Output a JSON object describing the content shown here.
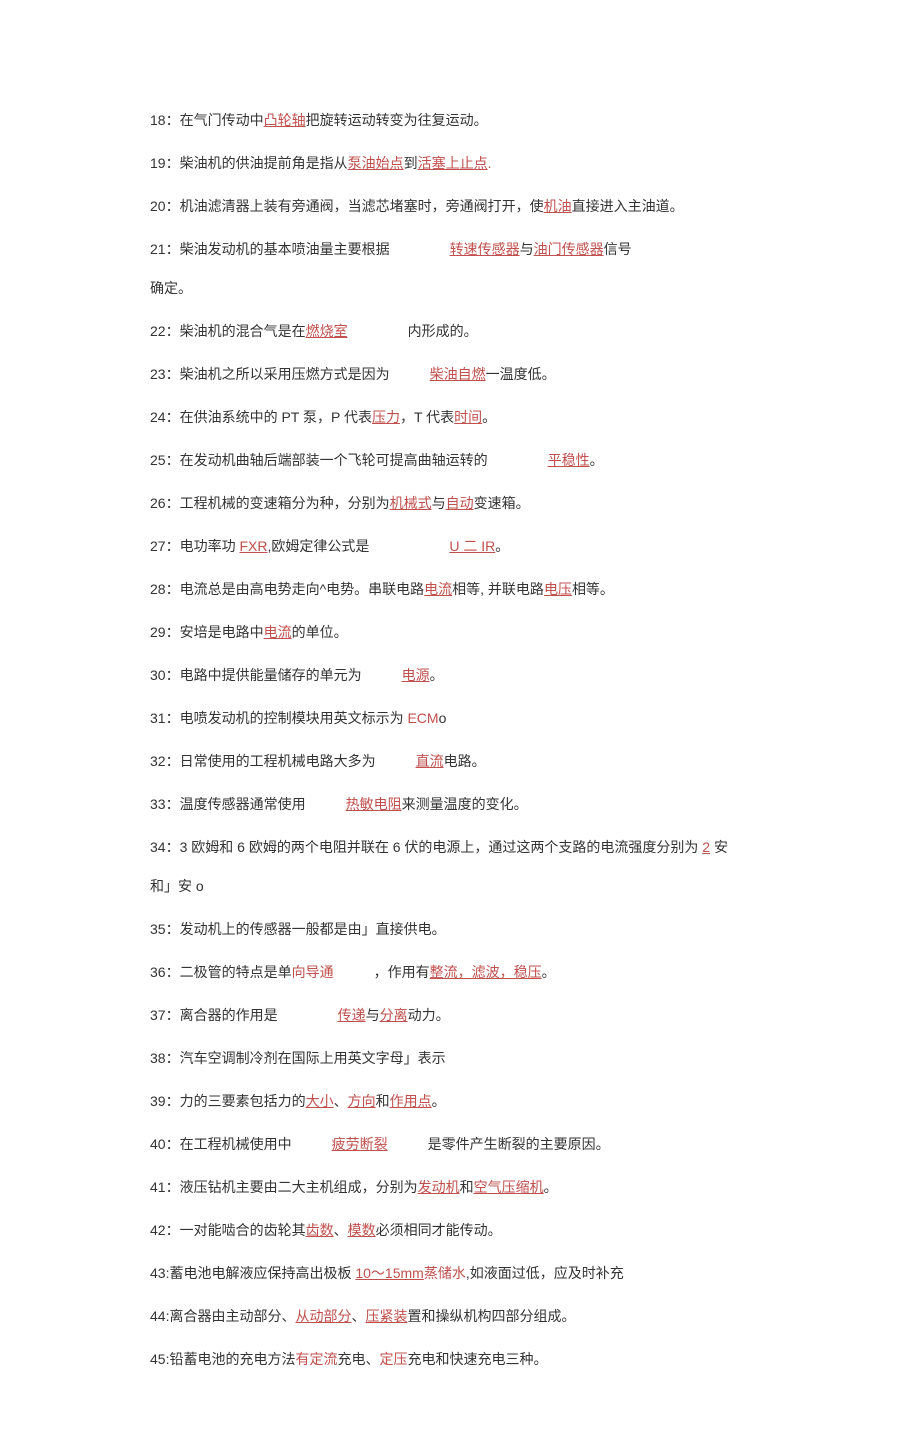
{
  "items": [
    {
      "n": "18",
      "pre": "在气门传动中",
      "a": [
        "凸轮轴"
      ],
      "post": "把旋转运动转变为往复运动。"
    },
    {
      "n": "19",
      "pre": "柴油机的供油提前角是指从",
      "a": [
        "泵油始点"
      ],
      "mid": [
        "到"
      ],
      "a2": [
        "活塞上止点"
      ],
      "dot": "."
    },
    {
      "n": "20",
      "pre": "机油滤清器上装有旁通阀，当滤芯堵塞时，旁通阀打开，使",
      "a": [
        "机油"
      ],
      "post": "直接进入主油道。"
    },
    {
      "n": "21",
      "pre": "柴油发动机的基本喷油量主要根据",
      "gap": "m",
      "a": [
        "转速传感器"
      ],
      "mid": [
        "与"
      ],
      "a2": [
        "油门传感器"
      ],
      "post": "信号",
      "wrap": "确定。"
    },
    {
      "n": "22",
      "pre": "柴油机的混合气是在",
      "a": [
        "燃烧室"
      ],
      "gap2": "m",
      "post": "内形成的。"
    },
    {
      "n": "23",
      "pre": "柴油机之所以采用压燃方式是因为",
      "gap": "s",
      "a": [
        "柴油自燃"
      ],
      "dash": "一",
      "post": "温度低。"
    },
    {
      "n": "24",
      "pre": "在供油系统中的 PT 泵，P 代表",
      "a": [
        "压力"
      ],
      "mid": [
        "，T 代表"
      ],
      "a2": [
        "时间"
      ],
      "post": "。"
    },
    {
      "n": "25",
      "pre": "在发动机曲轴后端部装一个飞轮可提高曲轴运转的",
      "gap": "m",
      "a": [
        "平稳性"
      ],
      "post": "。"
    },
    {
      "n": "26",
      "pre": "工程机械的变速箱分为种，分别为",
      "a": [
        "机械式"
      ],
      "mid": [
        "与"
      ],
      "a2": [
        "自动"
      ],
      "post": "变速箱。"
    },
    {
      "n": "27",
      "pre": "电功率功 ",
      "au": [
        "FXR"
      ],
      "pre2": ",欧姆定律公式是",
      "gap": "l",
      "a": [
        "U 二 IR"
      ],
      "post": "。"
    },
    {
      "n": "28",
      "pre": "电流总是由高电势走向^电势。串联电路",
      "a": [
        "电流"
      ],
      "mid": [
        "相等, 并联电路"
      ],
      "a2": [
        "电压"
      ],
      "post": "相等。"
    },
    {
      "n": "29",
      "pre": "安培是电路中",
      "a": [
        "电流"
      ],
      "post": "的单位。"
    },
    {
      "n": "30",
      "pre": "电路中提供能量储存的单元为",
      "gap": "s",
      "a": [
        "电源"
      ],
      "post": "。"
    },
    {
      "n": "31",
      "pre": "电喷发动机的控制模块用英文标示为 ",
      "anu": [
        "ECM"
      ],
      "post": "o"
    },
    {
      "n": "32",
      "pre": "日常使用的工程机械电路大多为",
      "gap": "s",
      "a": [
        "直流"
      ],
      "post": "电路。"
    },
    {
      "n": "33",
      "pre": "温度传感器通常使用",
      "gap": "s",
      "a": [
        "热敏电阻"
      ],
      "post": "来测量温度的变化。"
    },
    {
      "n": "34",
      "pre": "3 欧姆和 6 欧姆的两个电阻并联在 6 伏的电源上，通过这两个支路的电流强度分别为 ",
      "a": [
        "2"
      ],
      "post": " 安",
      "wrap": "和」安 o"
    },
    {
      "n": "35",
      "pre": "发动机上的传感器一般都是由」直接供电。"
    },
    {
      "n": "36",
      "pre": "二极管的特点是单",
      "anu": [
        "向导通"
      ],
      "gap2": "s",
      "mid": [
        "，作用有"
      ],
      "a2": [
        "整流，滤波，稳压"
      ],
      "post": "。"
    },
    {
      "n": "37",
      "pre": "离合器的作用是",
      "gap": "m",
      "a": [
        "传递"
      ],
      "mid": [
        "与"
      ],
      "a2": [
        "分离"
      ],
      "post": "动力。"
    },
    {
      "n": "38",
      "pre": "汽车空调制冷剂在国际上用英文字母」表示"
    },
    {
      "n": "39",
      "pre": "力的三要素包括力的",
      "a": [
        "大小"
      ],
      "mid": [
        "、"
      ],
      "a2": [
        "方向"
      ],
      "mid2": [
        "和"
      ],
      "a3": [
        "作用点"
      ],
      "post": "。"
    },
    {
      "n": "40",
      "pre": "在工程机械使用中",
      "gap": "s",
      "a": [
        "疲劳断裂"
      ],
      "gap2": "s",
      "post": "是零件产生断裂的主要原因。"
    },
    {
      "n": "41",
      "pre": "液压钻机主要由二大主机组成，分别为",
      "a": [
        "发动机"
      ],
      "mid": [
        "和"
      ],
      "a2": [
        "空气压缩机"
      ],
      "post": "。"
    },
    {
      "n": "42",
      "pre": "一对能啮合的齿轮其",
      "a": [
        "齿数"
      ],
      "mid": [
        "、"
      ],
      "a2": [
        "模数"
      ],
      "post": "必须相同才能传动。"
    },
    {
      "n": "43",
      "sep": ":",
      "pre": "蓄電池电解液应保持高出极板 ",
      "a": [
        "10～15mm"
      ],
      "post": ",如液面过低，应及时补充",
      "anu2": [
        "蒸储水"
      ]
    },
    {
      "n": "44",
      "sep": ":",
      "pre": "离合器由主动部分、",
      "a": [
        "从动部分"
      ],
      "mid": [
        "、"
      ],
      "a2": [
        "压紧装"
      ],
      "post": "置和操纵机构四部分组成。"
    },
    {
      "n": "45",
      "sep": ":",
      "pre": "铅蓄電池的充电方法",
      "anu": [
        "有定流"
      ],
      "mid": [
        "充电、"
      ],
      "anu2": [
        "定压"
      ],
      "post": "充电和快速充电三种。"
    }
  ],
  "fix": {
    "43pre": "蓄电池电解液应保持高出极板 ",
    "45pre": "铅蓄电池的充电方法"
  }
}
